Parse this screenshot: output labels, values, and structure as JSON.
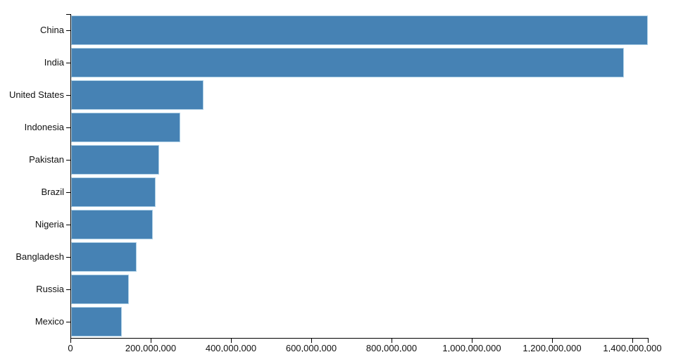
{
  "chart_data": {
    "type": "bar",
    "orientation": "horizontal",
    "title": "",
    "xlabel": "",
    "ylabel": "",
    "grid": false,
    "legend": null,
    "categories": [
      "China",
      "India",
      "United States",
      "Indonesia",
      "Pakistan",
      "Brazil",
      "Nigeria",
      "Bangladesh",
      "Russia",
      "Mexico"
    ],
    "values": [
      1439323776,
      1380004385,
      331002651,
      273523615,
      220892340,
      212559417,
      206139589,
      164689383,
      145934462,
      128932753
    ],
    "xlim": [
      0,
      1439323776
    ],
    "x_ticks": [
      0,
      200000000,
      400000000,
      600000000,
      800000000,
      1000000000,
      1200000000,
      1400000000
    ],
    "x_tick_labels": [
      "0",
      "200,000,000",
      "400,000,000",
      "600,000,000",
      "800,000,000",
      "1,000,000,000",
      "1,200,000,000",
      "1,400,000,000"
    ],
    "bar_color": "#4682b4",
    "bar_border_color": "#aed0e6",
    "axis_color": "#000000",
    "text_color": "#111111"
  }
}
